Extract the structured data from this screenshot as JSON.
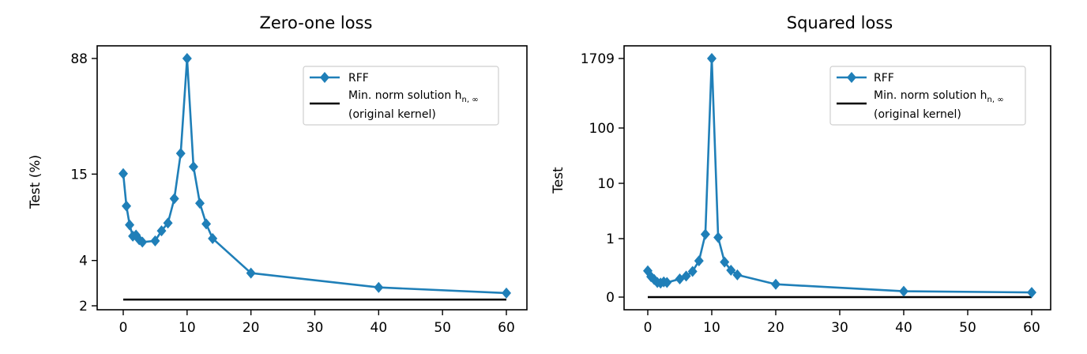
{
  "chart_data": [
    {
      "type": "line",
      "title": "Zero-one loss",
      "ylabel": "Test (%)",
      "xlabel": "",
      "xticks": [
        0,
        10,
        20,
        30,
        40,
        50,
        60
      ],
      "xlim": [
        -3,
        63
      ],
      "yscale": "log",
      "yticks": [
        2,
        4,
        15,
        88
      ],
      "ytick_labels": [
        "2",
        "4",
        "15",
        "88"
      ],
      "ylim": [
        2,
        88
      ],
      "legend": {
        "placement": "top-right",
        "rff_label": "RFF",
        "min_norm_label_line1": "Min. norm solution h",
        "min_norm_subscript": "n, ∞",
        "min_norm_label_line2": "(original kernel)"
      },
      "series": [
        {
          "name": "RFF",
          "color": "#1f7fb8",
          "marker": "diamond",
          "x": [
            0,
            0.5,
            1,
            1.5,
            2,
            2.5,
            3,
            5,
            6,
            7,
            8,
            9,
            10,
            11,
            12,
            13,
            14,
            20,
            40,
            60
          ],
          "y": [
            15.1,
            9.2,
            6.9,
            5.8,
            5.9,
            5.5,
            5.3,
            5.4,
            6.3,
            7.1,
            10.3,
            20.6,
            88,
            16.8,
            9.6,
            7.0,
            5.6,
            3.3,
            2.65,
            2.43
          ]
        },
        {
          "name": "Min. norm solution h_{n,∞} (original kernel)",
          "color": "#000000",
          "x": [
            0,
            60
          ],
          "y": [
            2.2,
            2.2
          ]
        }
      ]
    },
    {
      "type": "line",
      "title": "Squared loss",
      "ylabel": "Test",
      "xlabel": "",
      "xticks": [
        0,
        10,
        20,
        30,
        40,
        50,
        60
      ],
      "xlim": [
        -3,
        63
      ],
      "yscale": "symlog",
      "yticks": [
        0,
        1,
        10,
        100,
        1709
      ],
      "ytick_labels": [
        "0",
        "1",
        "10",
        "100",
        "1709"
      ],
      "ylim": [
        0,
        1709
      ],
      "legend": {
        "placement": "top-right",
        "rff_label": "RFF",
        "min_norm_label_line1": "Min. norm solution h",
        "min_norm_subscript": "n, ∞",
        "min_norm_label_line2": "(original kernel)"
      },
      "series": [
        {
          "name": "RFF",
          "color": "#1f7fb8",
          "marker": "diamond",
          "x": [
            0,
            0.5,
            1,
            1.5,
            2,
            2.5,
            3,
            5,
            6,
            7,
            8,
            9,
            10,
            11,
            12,
            13,
            14,
            20,
            40,
            60
          ],
          "y": [
            0.45,
            0.35,
            0.3,
            0.25,
            0.24,
            0.26,
            0.25,
            0.31,
            0.36,
            0.44,
            0.62,
            1.2,
            1709,
            1.05,
            0.6,
            0.46,
            0.38,
            0.22,
            0.1,
            0.08
          ]
        },
        {
          "name": "Min. norm solution h_{n,∞} (original kernel)",
          "color": "#000000",
          "x": [
            0,
            60
          ],
          "y": [
            0,
            0
          ]
        }
      ]
    }
  ]
}
